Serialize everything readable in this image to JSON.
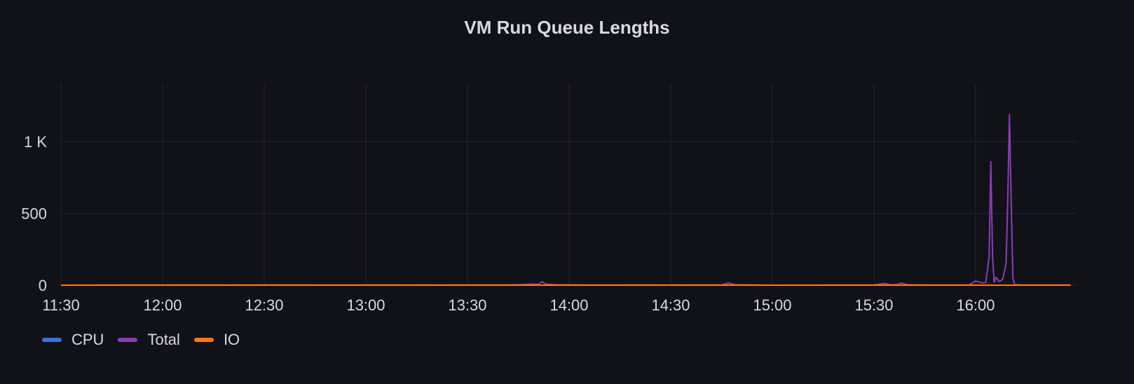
{
  "chart_data": {
    "type": "line",
    "title": "VM Run Queue Lengths",
    "xlabel": "",
    "ylabel": "",
    "x_ticks": [
      "11:30",
      "12:00",
      "12:30",
      "13:00",
      "13:30",
      "14:00",
      "14:30",
      "15:00",
      "15:30",
      "16:00"
    ],
    "y_ticks": [
      "0",
      "500",
      "1 K"
    ],
    "ylim": [
      0,
      1400
    ],
    "xlim": [
      "11:30",
      "16:28"
    ],
    "grid": true,
    "legend_position": "bottom-left",
    "series": [
      {
        "name": "CPU",
        "color": "#3d71d9",
        "points": [
          [
            "11:30",
            0
          ],
          [
            "16:28",
            0
          ]
        ]
      },
      {
        "name": "Total",
        "color": "#8f3bb8",
        "points": [
          [
            "11:30",
            0
          ],
          [
            "11:42",
            1
          ],
          [
            "11:46",
            1
          ],
          [
            "12:10",
            2
          ],
          [
            "12:20",
            1
          ],
          [
            "12:35",
            2
          ],
          [
            "12:45",
            1
          ],
          [
            "13:10",
            2
          ],
          [
            "13:20",
            1
          ],
          [
            "13:30",
            2
          ],
          [
            "13:40",
            1
          ],
          [
            "13:45",
            3
          ],
          [
            "13:49",
            8
          ],
          [
            "13:51",
            5
          ],
          [
            "13:52",
            25
          ],
          [
            "13:53",
            8
          ],
          [
            "13:56",
            3
          ],
          [
            "14:05",
            1
          ],
          [
            "14:25",
            2
          ],
          [
            "14:35",
            1
          ],
          [
            "14:45",
            2
          ],
          [
            "14:47",
            15
          ],
          [
            "14:49",
            3
          ],
          [
            "15:00",
            0
          ],
          [
            "15:30",
            2
          ],
          [
            "15:33",
            12
          ],
          [
            "15:35",
            3
          ],
          [
            "15:37",
            5
          ],
          [
            "15:38",
            15
          ],
          [
            "15:40",
            3
          ],
          [
            "15:45",
            1
          ],
          [
            "15:58",
            1
          ],
          [
            "16:00",
            30
          ],
          [
            "16:02",
            15
          ],
          [
            "16:03",
            20
          ],
          [
            "16:04",
            200
          ],
          [
            "16:045",
            860
          ],
          [
            "16:05",
            200
          ],
          [
            "16:055",
            20
          ],
          [
            "16:06",
            55
          ],
          [
            "16:07",
            25
          ],
          [
            "16:08",
            40
          ],
          [
            "16:09",
            150
          ],
          [
            "16:095",
            600
          ],
          [
            "16:10",
            1190
          ],
          [
            "16:105",
            600
          ],
          [
            "16:11",
            50
          ],
          [
            "16:115",
            5
          ],
          [
            "16:13",
            2
          ],
          [
            "16:20",
            1
          ],
          [
            "16:28",
            1
          ]
        ]
      },
      {
        "name": "IO",
        "color": "#ff780a",
        "points": [
          [
            "11:30",
            0
          ],
          [
            "16:28",
            0
          ]
        ]
      }
    ]
  }
}
